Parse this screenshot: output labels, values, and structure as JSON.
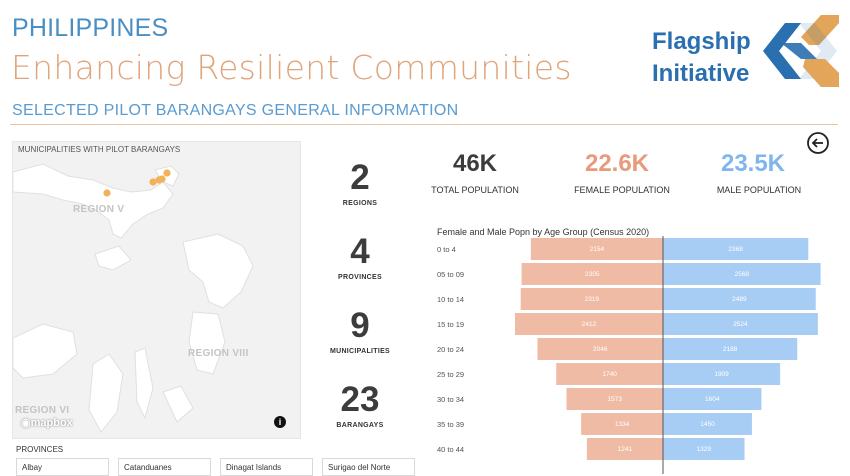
{
  "header": {
    "country": "PHILIPPINES",
    "title": "Enhancing Resilient Communities",
    "subtitle": "SELECTED PILOT BARANGAYS GENERAL INFORMATION"
  },
  "logo": {
    "line1": "Flagship",
    "line2": "Initiative"
  },
  "map": {
    "title": "MUNICIPALITIES WITH PILOT BARANGAYS",
    "regions": [
      "REGION V",
      "REGION VIII",
      "REGION VI"
    ],
    "attribution": "mapbox",
    "info_icon": "i",
    "marker_color": "#f0b35a"
  },
  "provinces": {
    "title": "PROVINCES",
    "items": [
      "Albay",
      "Catanduanes",
      "Dinagat Islands",
      "Surigao del Norte"
    ]
  },
  "kpis": [
    {
      "value": "2",
      "label": "REGIONS"
    },
    {
      "value": "4",
      "label": "PROVINCES"
    },
    {
      "value": "9",
      "label": "MUNICIPALITIES"
    },
    {
      "value": "23",
      "label": "BARANGAYS"
    }
  ],
  "population": {
    "total": {
      "value": "46K",
      "label": "TOTAL POPULATION",
      "color": "#3c3c3c"
    },
    "female": {
      "value": "22.6K",
      "label": "FEMALE POPULATION",
      "color": "#e79a7c"
    },
    "male": {
      "value": "23.5K",
      "label": "MALE POPULATION",
      "color": "#7fb6ee"
    }
  },
  "chart_data": {
    "type": "bar",
    "orientation": "horizontal-pyramid",
    "title": "Female and Male Popn by Age Group (Census 2020)",
    "categories": [
      "0 to 4",
      "05 to 09",
      "10 to 14",
      "15 to 19",
      "20 to 24",
      "25 to 29",
      "30 to 34",
      "35 to 39",
      "40 to 44"
    ],
    "series": [
      {
        "values": [
          2154,
          2305,
          2319,
          2412,
          2046,
          1740,
          1573,
          1334,
          1241
        ],
        "color": "#f0bba4"
      },
      {
        "values": [
          2368,
          2568,
          2489,
          2524,
          2188,
          1909,
          1604,
          1450,
          1329
        ],
        "color": "#a8cdf5"
      }
    ]
  },
  "icons": {
    "back": "back-arrow-circle-icon"
  }
}
